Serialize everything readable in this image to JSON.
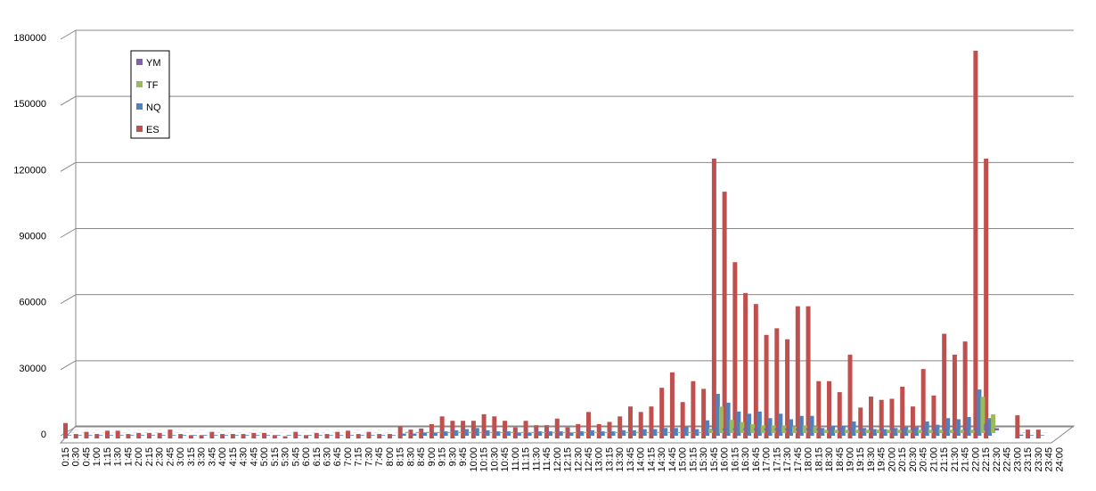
{
  "chart_data": {
    "type": "bar3d",
    "categories": [
      "0:15",
      "0:30",
      "0:45",
      "1:00",
      "1:15",
      "1:30",
      "1:45",
      "2:00",
      "2:15",
      "2:30",
      "2:45",
      "3:00",
      "3:15",
      "3:30",
      "3:45",
      "4:00",
      "4:15",
      "4:30",
      "4:45",
      "5:00",
      "5:15",
      "5:30",
      "5:45",
      "6:00",
      "6:15",
      "6:30",
      "6:45",
      "7:00",
      "7:15",
      "7:30",
      "7:45",
      "8:00",
      "8:15",
      "8:30",
      "8:45",
      "9:00",
      "9:15",
      "9:30",
      "9:45",
      "10:00",
      "10:15",
      "10:30",
      "10:45",
      "11:00",
      "11:15",
      "11:30",
      "11:45",
      "12:00",
      "12:15",
      "12:30",
      "12:45",
      "13:00",
      "13:15",
      "13:30",
      "13:45",
      "14:00",
      "14:15",
      "14:30",
      "14:45",
      "15:00",
      "15:15",
      "15:30",
      "15:45",
      "16:00",
      "16:15",
      "16:30",
      "16:45",
      "17:00",
      "17:15",
      "17:30",
      "17:45",
      "18:00",
      "18:15",
      "18:30",
      "18:45",
      "19:00",
      "19:15",
      "19:30",
      "19:45",
      "20:00",
      "20:15",
      "20:30",
      "20:45",
      "21:00",
      "21:15",
      "21:30",
      "21:45",
      "22:00",
      "22:15",
      "22:30",
      "22:45",
      "23:00",
      "23:15",
      "23:30",
      "23:45",
      "24:00"
    ],
    "series": [
      {
        "name": "YM",
        "color": "#7e62a1",
        "values": [
          50,
          50,
          50,
          50,
          50,
          50,
          50,
          50,
          50,
          50,
          50,
          50,
          50,
          50,
          50,
          50,
          50,
          50,
          50,
          50,
          50,
          50,
          50,
          50,
          50,
          50,
          50,
          50,
          50,
          50,
          50,
          50,
          200,
          200,
          200,
          200,
          200,
          200,
          200,
          200,
          200,
          200,
          200,
          200,
          200,
          200,
          200,
          200,
          200,
          200,
          200,
          200,
          200,
          200,
          200,
          200,
          200,
          200,
          200,
          200,
          200,
          1000,
          1000,
          1000,
          1000,
          1000,
          1000,
          1000,
          1000,
          1000,
          1000,
          1000,
          1000,
          1000,
          1000,
          1000,
          1000,
          1000,
          1000,
          1000,
          1000,
          1000,
          1000,
          1000,
          1000,
          1000,
          1000,
          3000,
          1000,
          0,
          0,
          0,
          0,
          0,
          0,
          0
        ]
      },
      {
        "name": "TF",
        "color": "#9bbb59",
        "values": [
          100,
          100,
          100,
          100,
          100,
          100,
          100,
          100,
          100,
          100,
          100,
          100,
          100,
          100,
          100,
          100,
          100,
          100,
          100,
          100,
          100,
          100,
          100,
          100,
          100,
          100,
          100,
          100,
          100,
          100,
          100,
          100,
          500,
          500,
          500,
          500,
          500,
          500,
          500,
          500,
          500,
          500,
          500,
          500,
          500,
          500,
          500,
          500,
          500,
          500,
          500,
          500,
          500,
          500,
          500,
          500,
          500,
          500,
          500,
          500,
          500,
          2000,
          12000,
          6000,
          5000,
          4000,
          3500,
          3500,
          3500,
          3000,
          3500,
          3000,
          1500,
          1500,
          1500,
          1500,
          1500,
          1500,
          1500,
          1500,
          1500,
          1500,
          1500,
          1500,
          1500,
          1500,
          1500,
          16500,
          8500,
          0,
          0,
          200,
          100,
          100,
          0,
          0
        ]
      },
      {
        "name": "NQ",
        "color": "#4f81bd",
        "values": [
          300,
          300,
          300,
          300,
          300,
          300,
          300,
          300,
          300,
          300,
          300,
          300,
          300,
          300,
          300,
          300,
          300,
          300,
          300,
          300,
          300,
          300,
          300,
          300,
          300,
          300,
          300,
          300,
          300,
          300,
          300,
          300,
          1000,
          1000,
          1500,
          1500,
          2000,
          2500,
          3000,
          3500,
          2500,
          2000,
          2000,
          1500,
          1500,
          2000,
          2000,
          2000,
          1500,
          2000,
          2500,
          2000,
          2000,
          2500,
          2500,
          3000,
          3000,
          3500,
          3500,
          4000,
          3000,
          7000,
          19000,
          15000,
          11000,
          10000,
          11000,
          8000,
          10000,
          7500,
          9000,
          9000,
          3500,
          4500,
          4500,
          6500,
          3500,
          3000,
          3000,
          3500,
          4000,
          4000,
          6500,
          5000,
          8000,
          7500,
          8500,
          21000,
          8000,
          0,
          0,
          500,
          300,
          300,
          0,
          0
        ]
      },
      {
        "name": "ES",
        "color": "#c0504d",
        "values": [
          7000,
          2000,
          3000,
          2000,
          3500,
          3500,
          2000,
          2500,
          2500,
          2500,
          4000,
          2000,
          1500,
          1500,
          3000,
          2000,
          2000,
          2000,
          2500,
          2500,
          1500,
          1000,
          3000,
          1500,
          2500,
          2000,
          3000,
          3500,
          2000,
          3000,
          2000,
          2000,
          5500,
          4000,
          4500,
          6500,
          10000,
          8000,
          8000,
          8000,
          11000,
          10000,
          8000,
          5000,
          8000,
          6000,
          6000,
          9000,
          5000,
          6500,
          12000,
          6500,
          7500,
          10000,
          14500,
          12000,
          14500,
          23000,
          30000,
          16500,
          26000,
          22500,
          127000,
          112000,
          80000,
          66000,
          61000,
          47000,
          50000,
          45000,
          60000,
          60000,
          26000,
          26000,
          21000,
          38000,
          14000,
          19000,
          17500,
          18000,
          23500,
          14500,
          31500,
          19500,
          47500,
          38000,
          44000,
          176000,
          127000,
          0,
          0,
          10500,
          4000,
          4000,
          0,
          0
        ]
      }
    ],
    "ylim": [
      0,
      180000
    ],
    "yticks": [
      0,
      30000,
      60000,
      90000,
      120000,
      150000,
      180000
    ],
    "grid": true,
    "legend": "top-left"
  }
}
